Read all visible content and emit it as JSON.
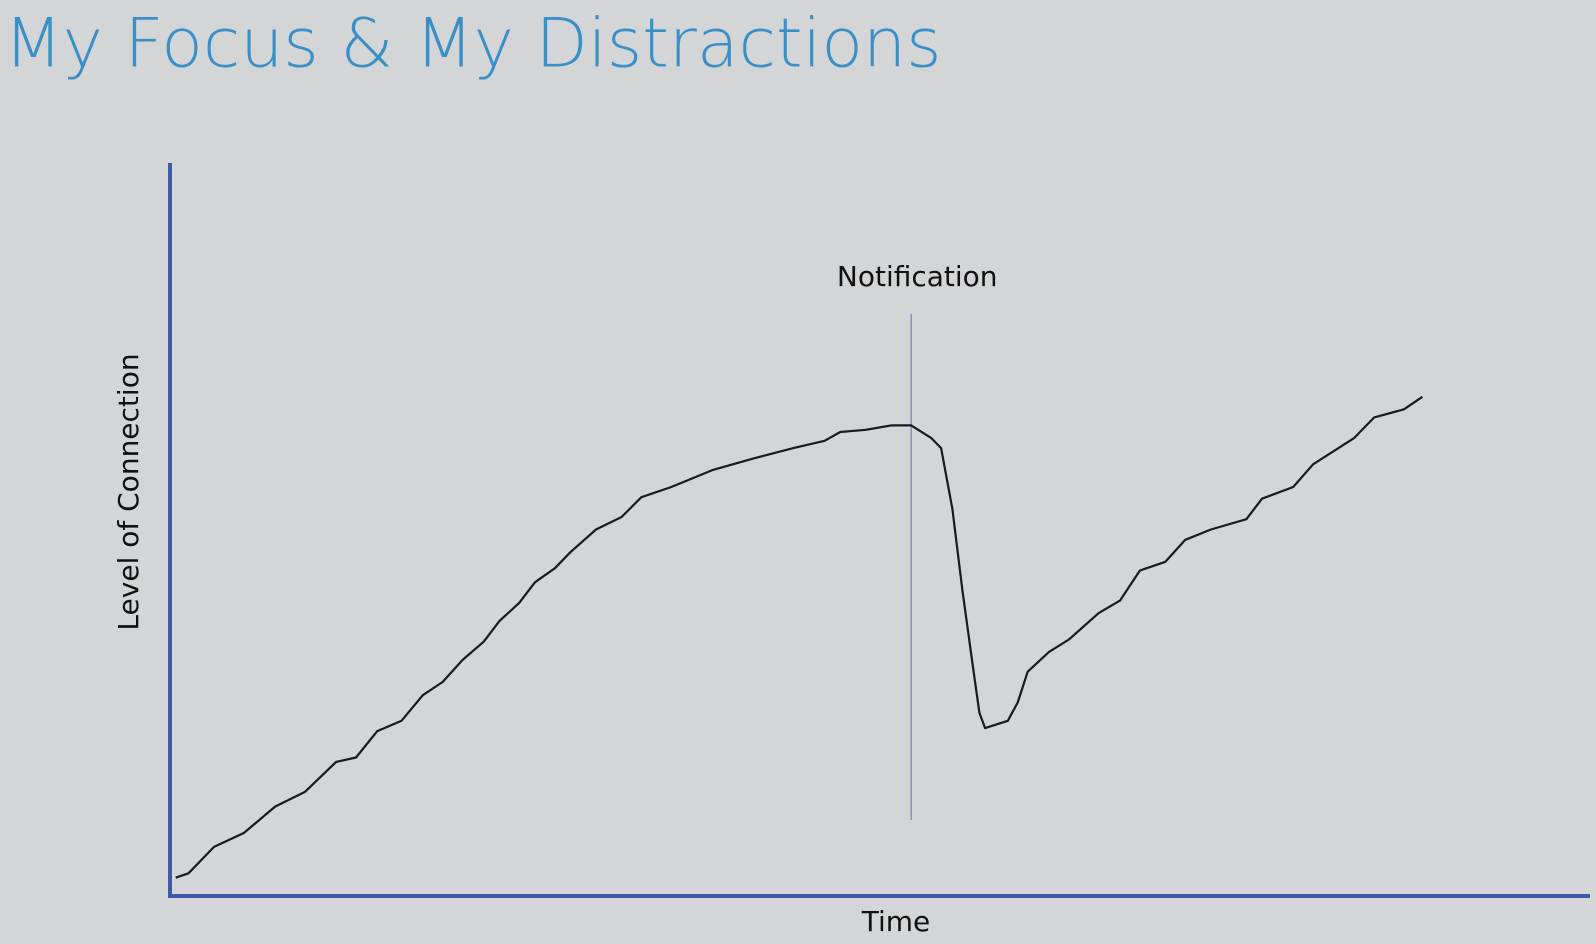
{
  "chart_data": {
    "type": "line",
    "title": "My Focus & My Distractions",
    "x_label": "Time",
    "y_label": "Level of Connection",
    "xlim": [
      0,
      100
    ],
    "ylim": [
      0,
      100
    ],
    "annotation": {
      "text": "Notification",
      "x": 52.2
    },
    "series": [
      {
        "color": "#1a1a1a",
        "x": [
          0.4,
          1.3,
          3.1,
          5.2,
          7.4,
          9.5,
          11.7,
          13.1,
          14.6,
          16.3,
          17.8,
          19.2,
          20.6,
          22.1,
          23.2,
          24.6,
          25.7,
          27.1,
          28.2,
          30.0,
          31.8,
          33.2,
          35.3,
          38.2,
          41.1,
          43.9,
          46.1,
          47.2,
          49.0,
          50.8,
          52.2,
          53.6,
          54.3,
          55.1,
          55.8,
          56.5,
          57.0,
          57.4,
          59.0,
          59.7,
          60.4,
          61.9,
          63.3,
          65.4,
          66.9,
          68.3,
          70.1,
          71.5,
          73.3,
          75.8,
          76.9,
          79.1,
          80.5,
          83.4,
          84.8,
          86.9,
          88.2
        ],
        "values": [
          2.5,
          3.1,
          6.7,
          8.6,
          12.2,
          14.2,
          18.3,
          18.9,
          22.5,
          23.9,
          27.4,
          29.2,
          32.2,
          34.7,
          37.5,
          40,
          42.8,
          44.7,
          46.9,
          50,
          51.7,
          54.4,
          55.8,
          58.1,
          59.7,
          61.1,
          62.1,
          63.3,
          63.6,
          64.2,
          64.2,
          62.5,
          61.1,
          52.8,
          41.7,
          31.9,
          25,
          22.9,
          23.9,
          26.4,
          30.6,
          33.3,
          35,
          38.6,
          40.3,
          44.4,
          45.6,
          48.6,
          50,
          51.4,
          54.2,
          55.8,
          58.9,
          62.5,
          65.3,
          66.4,
          68.1
        ]
      }
    ],
    "axis_color": "#3f5aa8",
    "title_color": "#3a8fc6",
    "annotation_color": "#8a93b8"
  }
}
